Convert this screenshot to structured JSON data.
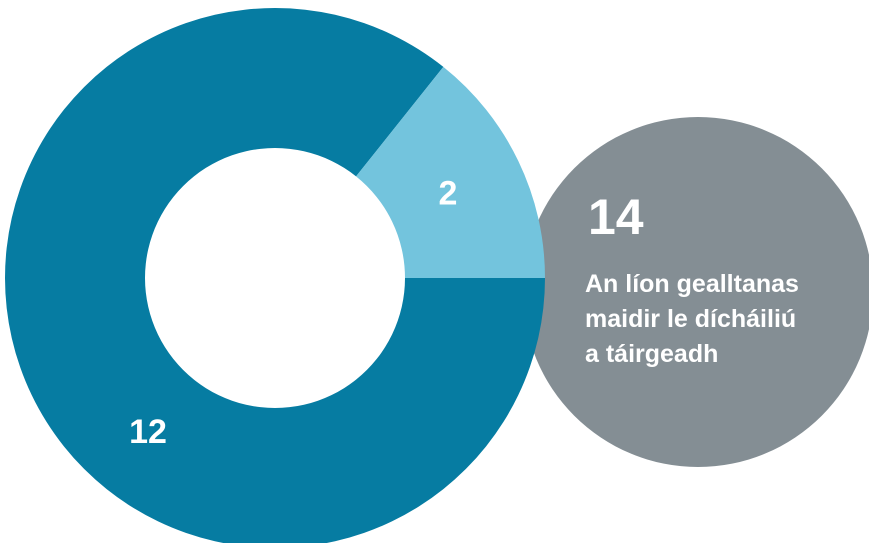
{
  "chart_data": {
    "type": "pie",
    "variant": "donut",
    "categories": [
      "",
      ""
    ],
    "values": [
      12,
      2
    ],
    "data_labels": [
      "12",
      "2"
    ],
    "colors": [
      "#067ca2",
      "#73c4dd"
    ],
    "title": "",
    "legend": "none"
  },
  "summary": {
    "total": "14",
    "description_lines": [
      "An líon gealltanas",
      "maidir le dícháiliú",
      "a táirgeadh"
    ],
    "color": "#848e94",
    "text_color": "#ffffff"
  }
}
